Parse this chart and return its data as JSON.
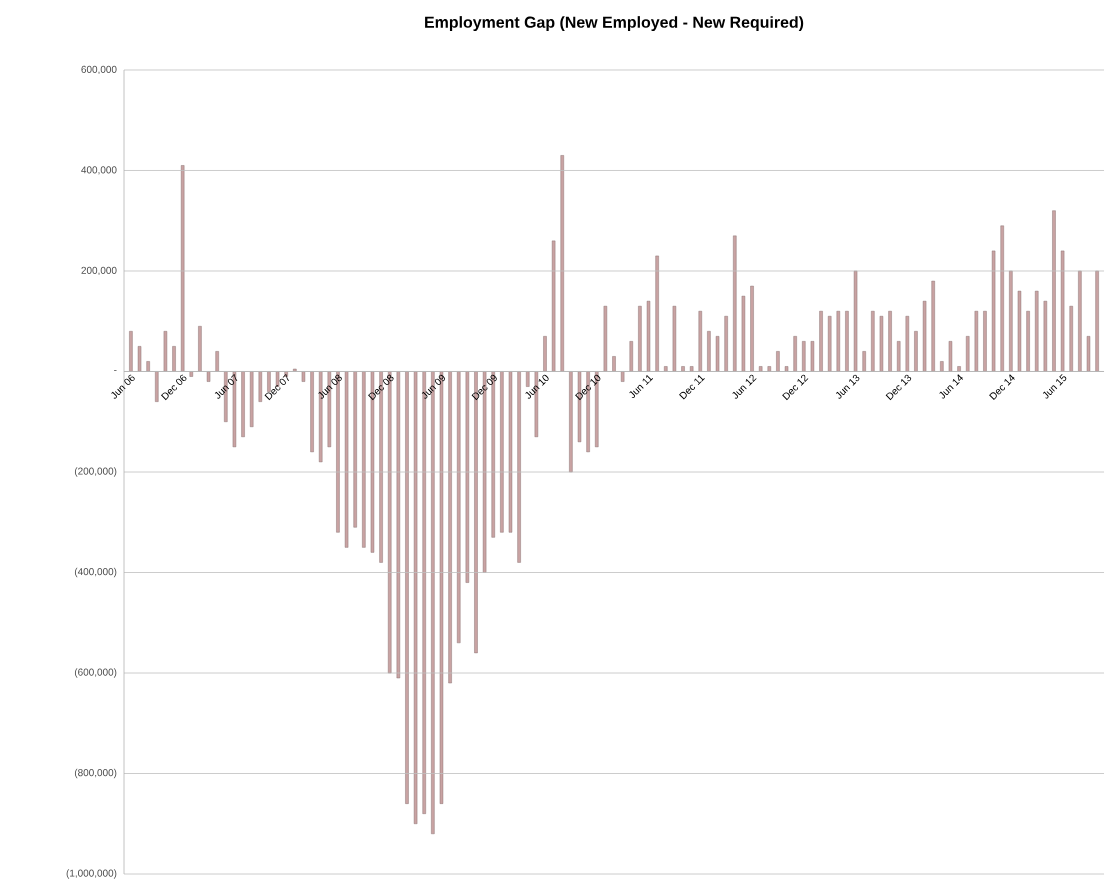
{
  "chart_data": {
    "type": "bar",
    "title": "Employment Gap (New Employed - New Required)",
    "categories": [
      "Jun 06",
      null,
      null,
      null,
      null,
      null,
      "Dec 06",
      null,
      null,
      null,
      null,
      null,
      "Jun 07",
      null,
      null,
      null,
      null,
      null,
      "Dec 07",
      null,
      null,
      null,
      null,
      null,
      "Jun 08",
      null,
      null,
      null,
      null,
      null,
      "Dec 08",
      null,
      null,
      null,
      null,
      null,
      "Jun 09",
      null,
      null,
      null,
      null,
      null,
      "Dec 09",
      null,
      null,
      null,
      null,
      null,
      "Jun 10",
      null,
      null,
      null,
      null,
      null,
      "Dec 10",
      null,
      null,
      null,
      null,
      null,
      "Jun 11",
      null,
      null,
      null,
      null,
      null,
      "Dec 11",
      null,
      null,
      null,
      null,
      null,
      "Jun 12",
      null,
      null,
      null,
      null,
      null,
      "Dec 12",
      null,
      null,
      null,
      null,
      null,
      "Jun 13",
      null,
      null,
      null,
      null,
      null,
      "Dec 13",
      null,
      null,
      null,
      null,
      null,
      "Jun 14",
      null,
      null,
      null,
      null,
      null,
      "Dec 14",
      null,
      null,
      null,
      null,
      null,
      "Jun 15",
      null,
      null,
      null,
      null
    ],
    "values": [
      80000,
      50000,
      20000,
      -60000,
      80000,
      50000,
      410000,
      -10000,
      90000,
      -20000,
      40000,
      -100000,
      -150000,
      -130000,
      -110000,
      -60000,
      -40000,
      -30000,
      -10000,
      5000,
      -20000,
      -160000,
      -180000,
      -150000,
      -320000,
      -350000,
      -310000,
      -350000,
      -360000,
      -380000,
      -600000,
      -610000,
      -860000,
      -900000,
      -880000,
      -920000,
      -860000,
      -620000,
      -540000,
      -420000,
      -560000,
      -400000,
      -330000,
      -320000,
      -320000,
      -380000,
      -30000,
      -130000,
      70000,
      260000,
      430000,
      -200000,
      -140000,
      -160000,
      -150000,
      130000,
      30000,
      -20000,
      60000,
      130000,
      140000,
      230000,
      10000,
      130000,
      10000,
      10000,
      120000,
      80000,
      70000,
      110000,
      270000,
      150000,
      170000,
      10000,
      10000,
      40000,
      10000,
      70000,
      60000,
      60000,
      120000,
      110000,
      120000,
      120000,
      200000,
      40000,
      120000,
      110000,
      120000,
      60000,
      110000,
      80000,
      140000,
      180000,
      20000,
      60000,
      10000,
      70000,
      120000,
      120000,
      240000,
      290000,
      200000,
      160000,
      120000,
      160000,
      140000,
      320000,
      240000,
      130000,
      200000,
      70000,
      200000
    ],
    "color": "#c9a3a3",
    "ylim": [
      -1000000,
      600000
    ],
    "yticks": [
      {
        "value": -1000000,
        "label": "(1,000,000)"
      },
      {
        "value": -800000,
        "label": "(800,000)"
      },
      {
        "value": -600000,
        "label": "(600,000)"
      },
      {
        "value": -400000,
        "label": "(400,000)"
      },
      {
        "value": -200000,
        "label": "(200,000)"
      },
      {
        "value": 0,
        "label": "-"
      },
      {
        "value": 200000,
        "label": "200,000"
      },
      {
        "value": 400000,
        "label": "400,000"
      },
      {
        "value": 600000,
        "label": "600,000"
      }
    ],
    "grid": "y"
  }
}
